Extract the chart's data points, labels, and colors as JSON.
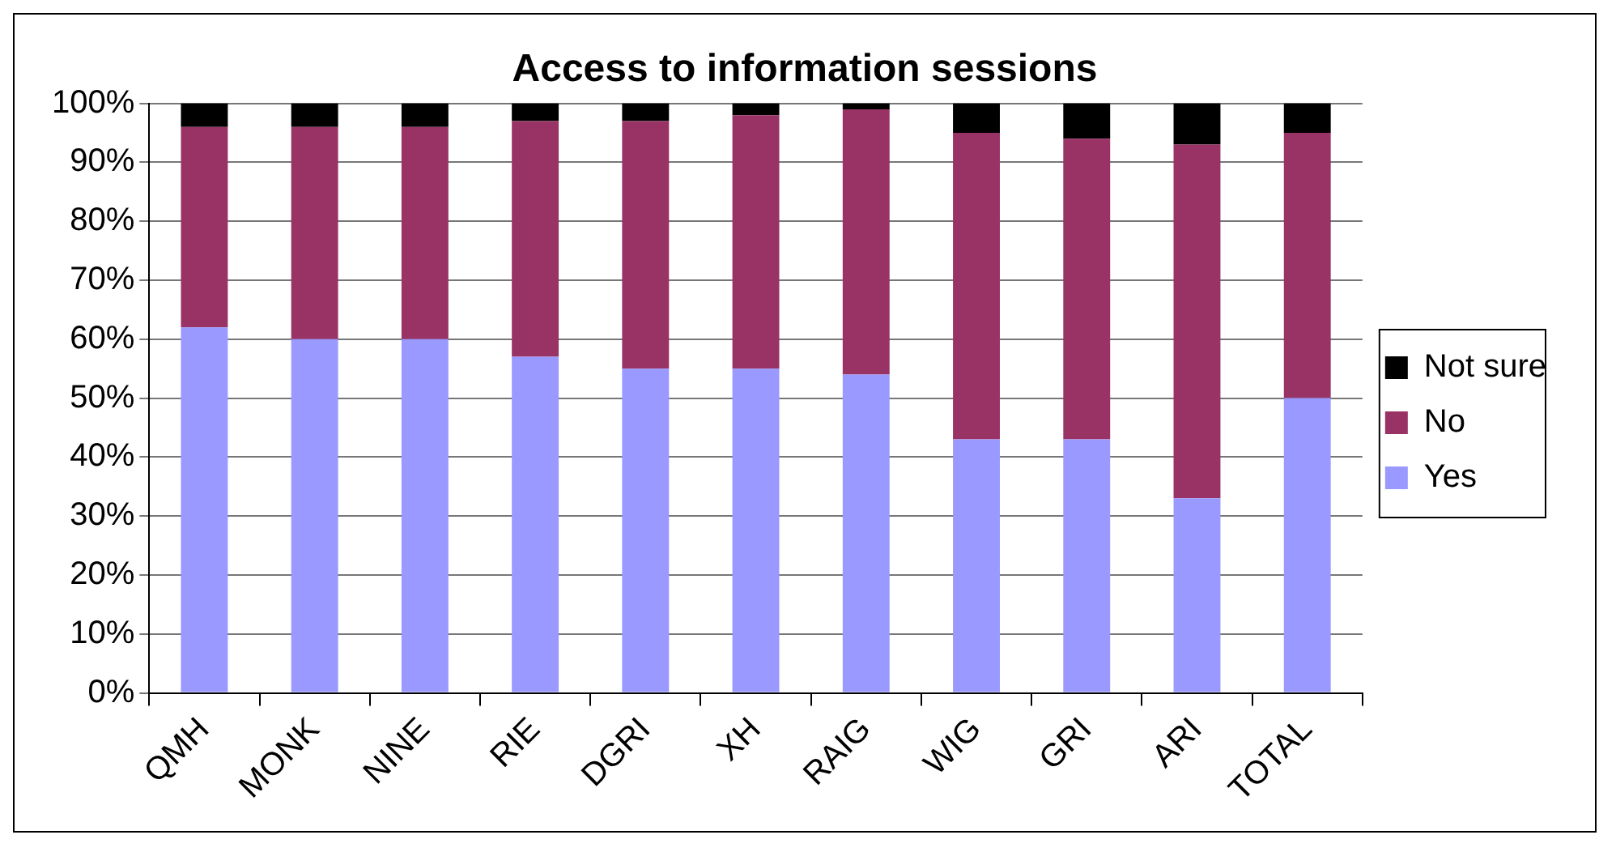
{
  "chart_data": {
    "type": "bar",
    "title": "Access to information sessions",
    "stacked": true,
    "categories": [
      "QMH",
      "MONK",
      "NINE",
      "RIE",
      "DGRI",
      "XH",
      "RAIG",
      "WIG",
      "GRI",
      "ARI",
      "TOTAL"
    ],
    "series": [
      {
        "name": "Yes",
        "color": "#9999ff",
        "values": [
          62,
          60,
          60,
          57,
          55,
          55,
          54,
          43,
          43,
          33,
          50
        ]
      },
      {
        "name": "No",
        "color": "#993366",
        "values": [
          34,
          36,
          36,
          40,
          42,
          43,
          45,
          52,
          51,
          60,
          45
        ]
      },
      {
        "name": "Not sure",
        "color": "#000000",
        "values": [
          4,
          4,
          4,
          3,
          3,
          2,
          1,
          5,
          6,
          7,
          5
        ]
      }
    ],
    "ylim": [
      0,
      100
    ],
    "yticks": [
      {
        "value": 0,
        "label": "0%"
      },
      {
        "value": 10,
        "label": "10%"
      },
      {
        "value": 20,
        "label": "20%"
      },
      {
        "value": 30,
        "label": "30%"
      },
      {
        "value": 40,
        "label": "40%"
      },
      {
        "value": 50,
        "label": "50%"
      },
      {
        "value": 60,
        "label": "60%"
      },
      {
        "value": 70,
        "label": "70%"
      },
      {
        "value": 80,
        "label": "80%"
      },
      {
        "value": 90,
        "label": "90%"
      },
      {
        "value": 100,
        "label": "100%"
      }
    ],
    "grid": "y",
    "legend": "right"
  }
}
